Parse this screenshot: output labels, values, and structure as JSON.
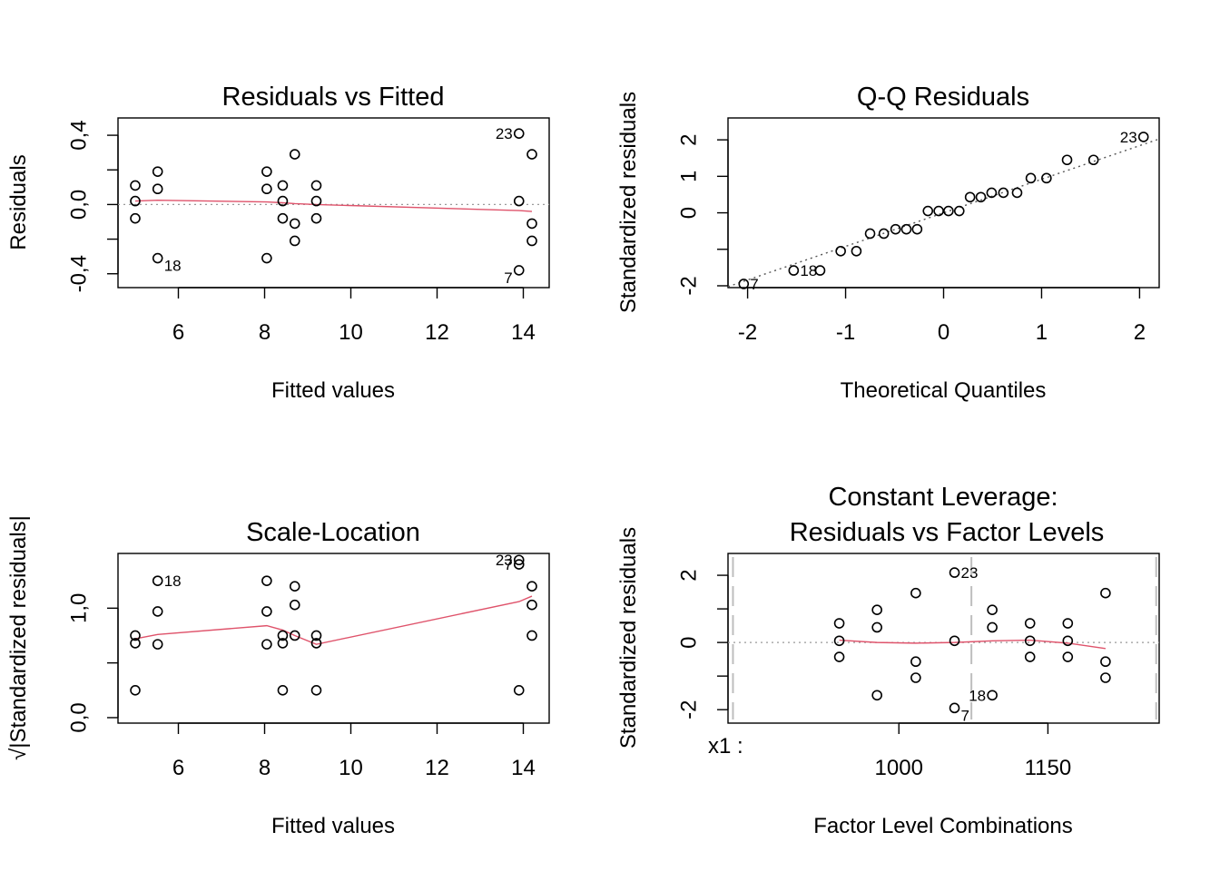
{
  "chart_data": [
    {
      "type": "scatter",
      "title": "Residuals vs Fitted",
      "xlabel": "Fitted values",
      "ylabel": "Residuals",
      "xlim": [
        4.6,
        14.6
      ],
      "ylim": [
        -0.48,
        0.5
      ],
      "x_ticks": [
        6,
        8,
        10,
        12,
        14
      ],
      "x_tick_labels": [
        "6",
        "8",
        "10",
        "12",
        "14"
      ],
      "y_ticks": [
        -0.4,
        -0.2,
        0.0,
        0.2,
        0.4
      ],
      "y_tick_labels": [
        "-0,4",
        "",
        "0,0",
        "",
        "0,4"
      ],
      "reference_line": {
        "y": 0,
        "style": "dotted",
        "color": "#9a9a9a"
      },
      "points": [
        {
          "x": 5.0,
          "y": 0.11
        },
        {
          "x": 5.0,
          "y": 0.02
        },
        {
          "x": 5.0,
          "y": -0.08
        },
        {
          "x": 5.52,
          "y": 0.19
        },
        {
          "x": 5.52,
          "y": 0.09
        },
        {
          "x": 5.52,
          "y": -0.31
        },
        {
          "x": 8.05,
          "y": 0.19
        },
        {
          "x": 8.05,
          "y": 0.09
        },
        {
          "x": 8.05,
          "y": -0.31
        },
        {
          "x": 8.42,
          "y": 0.11
        },
        {
          "x": 8.42,
          "y": 0.02
        },
        {
          "x": 8.42,
          "y": -0.08
        },
        {
          "x": 8.7,
          "y": 0.29
        },
        {
          "x": 8.7,
          "y": -0.11
        },
        {
          "x": 8.7,
          "y": -0.21
        },
        {
          "x": 9.2,
          "y": 0.11
        },
        {
          "x": 9.2,
          "y": 0.02
        },
        {
          "x": 9.2,
          "y": -0.08
        },
        {
          "x": 13.9,
          "y": 0.41
        },
        {
          "x": 13.9,
          "y": 0.02
        },
        {
          "x": 13.9,
          "y": -0.38
        },
        {
          "x": 14.2,
          "y": 0.29
        },
        {
          "x": 14.2,
          "y": -0.11
        },
        {
          "x": 14.2,
          "y": -0.21
        }
      ],
      "smooth_line": {
        "color": "#DF536B",
        "x": [
          5.0,
          5.52,
          8.05,
          8.42,
          8.7,
          9.2,
          13.9,
          14.2
        ],
        "y": [
          0.02,
          0.025,
          0.015,
          0.01,
          0.005,
          0.0,
          -0.035,
          -0.04
        ]
      },
      "point_labels": [
        {
          "text": "23",
          "x": 13.9,
          "y": 0.41,
          "side": "left"
        },
        {
          "text": "18",
          "x": 5.52,
          "y": -0.31,
          "side": "below-right"
        },
        {
          "text": "7",
          "x": 13.9,
          "y": -0.38,
          "side": "below-left"
        }
      ]
    },
    {
      "type": "scatter",
      "title": "Q-Q Residuals",
      "xlabel": "Theoretical Quantiles",
      "ylabel": "Standardized residuals",
      "xlim": [
        -2.2,
        2.2
      ],
      "ylim": [
        -2.05,
        2.6
      ],
      "x_ticks": [
        -2,
        -1,
        0,
        1,
        2
      ],
      "x_tick_labels": [
        "-2",
        "-1",
        "0",
        "1",
        "2"
      ],
      "y_ticks": [
        -2,
        -1,
        0,
        1,
        2
      ],
      "y_tick_labels": [
        "-2",
        "",
        "0",
        "1",
        "2"
      ],
      "reference_line": {
        "slope": 0.92,
        "intercept": 0.0,
        "style": "dotted",
        "color": "#555555"
      },
      "points": [
        {
          "x": -2.04,
          "y": -1.95
        },
        {
          "x": -1.53,
          "y": -1.58
        },
        {
          "x": -1.26,
          "y": -1.58
        },
        {
          "x": -1.05,
          "y": -1.05
        },
        {
          "x": -0.89,
          "y": -1.05
        },
        {
          "x": -0.75,
          "y": -0.57
        },
        {
          "x": -0.61,
          "y": -0.57
        },
        {
          "x": -0.49,
          "y": -0.45
        },
        {
          "x": -0.38,
          "y": -0.45
        },
        {
          "x": -0.27,
          "y": -0.45
        },
        {
          "x": -0.16,
          "y": 0.05
        },
        {
          "x": -0.05,
          "y": 0.05
        },
        {
          "x": 0.05,
          "y": 0.05
        },
        {
          "x": 0.16,
          "y": 0.05
        },
        {
          "x": 0.27,
          "y": 0.43
        },
        {
          "x": 0.38,
          "y": 0.43
        },
        {
          "x": 0.49,
          "y": 0.55
        },
        {
          "x": 0.61,
          "y": 0.55
        },
        {
          "x": 0.75,
          "y": 0.55
        },
        {
          "x": 0.89,
          "y": 0.95
        },
        {
          "x": 1.05,
          "y": 0.95
        },
        {
          "x": 1.26,
          "y": 1.45
        },
        {
          "x": 1.53,
          "y": 1.45
        },
        {
          "x": 2.04,
          "y": 2.08
        }
      ],
      "point_labels": [
        {
          "text": "23",
          "x": 2.04,
          "y": 2.08,
          "side": "left"
        },
        {
          "text": "18",
          "x": -1.53,
          "y": -1.58,
          "side": "right"
        },
        {
          "text": "7",
          "x": -2.04,
          "y": -1.95,
          "side": "right"
        }
      ]
    },
    {
      "type": "scatter",
      "title": "Scale-Location",
      "xlabel": "Fitted values",
      "ylabel": "√|Standardized residuals|",
      "xlim": [
        4.6,
        14.6
      ],
      "ylim": [
        -0.05,
        1.5
      ],
      "x_ticks": [
        6,
        8,
        10,
        12,
        14
      ],
      "x_tick_labels": [
        "6",
        "8",
        "10",
        "12",
        "14"
      ],
      "y_ticks": [
        0.0,
        0.5,
        1.0
      ],
      "y_tick_labels": [
        "0,0",
        "",
        "1,0"
      ],
      "points": [
        {
          "x": 5.0,
          "y": 0.75
        },
        {
          "x": 5.0,
          "y": 0.68
        },
        {
          "x": 5.0,
          "y": 0.25
        },
        {
          "x": 5.52,
          "y": 1.25
        },
        {
          "x": 5.52,
          "y": 0.97
        },
        {
          "x": 5.52,
          "y": 0.67
        },
        {
          "x": 8.05,
          "y": 1.25
        },
        {
          "x": 8.05,
          "y": 0.97
        },
        {
          "x": 8.05,
          "y": 0.67
        },
        {
          "x": 8.42,
          "y": 0.75
        },
        {
          "x": 8.42,
          "y": 0.68
        },
        {
          "x": 8.42,
          "y": 0.25
        },
        {
          "x": 8.7,
          "y": 1.2
        },
        {
          "x": 8.7,
          "y": 1.03
        },
        {
          "x": 8.7,
          "y": 0.75
        },
        {
          "x": 9.2,
          "y": 0.75
        },
        {
          "x": 9.2,
          "y": 0.68
        },
        {
          "x": 9.2,
          "y": 0.25
        },
        {
          "x": 13.9,
          "y": 1.44
        },
        {
          "x": 13.9,
          "y": 1.4
        },
        {
          "x": 13.9,
          "y": 0.25
        },
        {
          "x": 14.2,
          "y": 1.2
        },
        {
          "x": 14.2,
          "y": 1.03
        },
        {
          "x": 14.2,
          "y": 0.75
        }
      ],
      "smooth_line": {
        "color": "#DF536B",
        "x": [
          5.0,
          5.52,
          8.05,
          8.42,
          8.7,
          9.2,
          13.9,
          14.2
        ],
        "y": [
          0.72,
          0.76,
          0.84,
          0.8,
          0.75,
          0.67,
          1.06,
          1.11
        ]
      },
      "point_labels": [
        {
          "text": "18",
          "x": 5.52,
          "y": 1.25,
          "side": "right"
        },
        {
          "text": "23",
          "x": 13.9,
          "y": 1.44,
          "side": "left"
        },
        {
          "text": "7",
          "x": 13.9,
          "y": 1.4,
          "side": "left"
        }
      ]
    },
    {
      "type": "scatter",
      "title": "Constant Leverage:",
      "subtitle": "Residuals vs Factor Levels",
      "xlabel": "Factor Level Combinations",
      "ylabel": "Standardized residuals",
      "factor_label": "x1 :",
      "xlim": [
        828,
        1262
      ],
      "ylim": [
        -2.4,
        2.65
      ],
      "x_ticks": [
        1000,
        1150
      ],
      "x_tick_labels": [
        "1000",
        "1150"
      ],
      "y_ticks": [
        -2,
        -1,
        0,
        1,
        2
      ],
      "y_tick_labels": [
        "-2",
        "",
        "0",
        "",
        "2"
      ],
      "reference_line": {
        "y": 0,
        "style": "dotted",
        "color": "#9a9a9a"
      },
      "separators": [
        833,
        1073,
        1259
      ],
      "points": [
        {
          "x": 940,
          "y": 0.57
        },
        {
          "x": 940,
          "y": 0.05
        },
        {
          "x": 940,
          "y": -0.43
        },
        {
          "x": 978,
          "y": 0.97
        },
        {
          "x": 978,
          "y": 0.45
        },
        {
          "x": 978,
          "y": -1.57
        },
        {
          "x": 1017,
          "y": 1.47
        },
        {
          "x": 1017,
          "y": -0.57
        },
        {
          "x": 1017,
          "y": -1.05
        },
        {
          "x": 1056,
          "y": 2.08
        },
        {
          "x": 1056,
          "y": 0.05
        },
        {
          "x": 1056,
          "y": -1.95
        },
        {
          "x": 1094,
          "y": 0.97
        },
        {
          "x": 1094,
          "y": 0.45
        },
        {
          "x": 1094,
          "y": -1.57
        },
        {
          "x": 1132,
          "y": 0.57
        },
        {
          "x": 1132,
          "y": 0.05
        },
        {
          "x": 1132,
          "y": -0.43
        },
        {
          "x": 1170,
          "y": 0.57
        },
        {
          "x": 1170,
          "y": 0.05
        },
        {
          "x": 1170,
          "y": -0.43
        },
        {
          "x": 1208,
          "y": 1.47
        },
        {
          "x": 1208,
          "y": -0.57
        },
        {
          "x": 1208,
          "y": -1.05
        }
      ],
      "smooth_line": {
        "color": "#DF536B",
        "x": [
          940,
          978,
          1017,
          1056,
          1094,
          1132,
          1170,
          1208
        ],
        "y": [
          0.07,
          0.0,
          -0.02,
          0.0,
          0.05,
          0.07,
          -0.02,
          -0.18
        ]
      },
      "point_labels": [
        {
          "text": "23",
          "x": 1056,
          "y": 2.08,
          "side": "right"
        },
        {
          "text": "7",
          "x": 1056,
          "y": -1.95,
          "side": "below-right"
        },
        {
          "text": "18",
          "x": 1094,
          "y": -1.57,
          "side": "left"
        }
      ]
    }
  ]
}
